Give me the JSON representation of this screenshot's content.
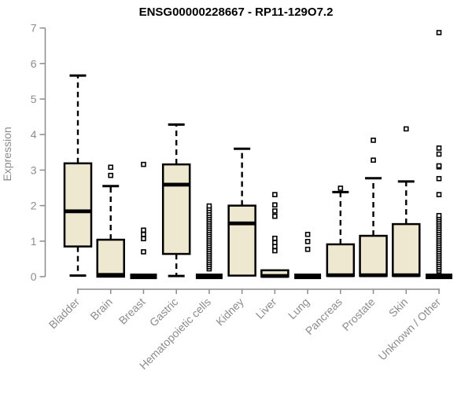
{
  "colors": {
    "background": "#FFFFFF",
    "box_fill": "#EDE8CF",
    "box_stroke": "#000000",
    "median": "#000000",
    "axis": "#8C8C8C",
    "tick_label": "#8C8C8C",
    "title": "#000000",
    "outlier_stroke": "#000000",
    "outlier_fill": "#FFFFFF"
  },
  "chart_data": {
    "type": "boxplot",
    "title": "ENSG00000228667 - RP11-129O7.2",
    "ylabel": "Expression",
    "xlabel": "",
    "ylim": [
      0,
      7
    ],
    "yticks": [
      0,
      1,
      2,
      3,
      4,
      5,
      6,
      7
    ],
    "grid": false,
    "legend": false,
    "categories": [
      "Bladder",
      "Brain",
      "Breast",
      "Gastric",
      "Hematopoietic cells",
      "Kidney",
      "Liver",
      "Lung",
      "Pancreas",
      "Prostate",
      "Skin",
      "Unknown / Other"
    ],
    "series": [
      {
        "category": "Bladder",
        "low": 0.03,
        "q1": 0.85,
        "median": 1.84,
        "q3": 3.19,
        "high": 5.66,
        "outliers": []
      },
      {
        "category": "Brain",
        "low": 0.0,
        "q1": 0.0,
        "median": 0.05,
        "q3": 1.04,
        "high": 2.55,
        "outliers": [
          2.85,
          3.08
        ]
      },
      {
        "category": "Breast",
        "low": 0.0,
        "q1": 0.0,
        "median": 0.02,
        "q3": 0.05,
        "high": 0.05,
        "outliers": [
          0.7,
          1.07,
          1.19,
          1.31,
          3.16
        ]
      },
      {
        "category": "Gastric",
        "low": 0.02,
        "q1": 0.64,
        "median": 2.59,
        "q3": 3.16,
        "high": 4.28,
        "outliers": []
      },
      {
        "category": "Hematopoietic cells",
        "low": 0.0,
        "q1": 0.0,
        "median": 0.02,
        "q3": 0.05,
        "high": 0.05,
        "outliers": [
          0.22,
          0.28,
          0.34,
          0.4,
          0.46,
          0.52,
          0.58,
          0.64,
          0.7,
          0.76,
          0.82,
          0.88,
          0.94,
          1.0,
          1.06,
          1.12,
          1.18,
          1.24,
          1.3,
          1.36,
          1.42,
          1.48,
          1.54,
          1.6,
          1.66,
          1.72,
          1.78,
          1.85,
          1.92,
          1.99
        ]
      },
      {
        "category": "Kidney",
        "low": 0.03,
        "q1": 0.03,
        "median": 1.5,
        "q3": 2.0,
        "high": 3.6,
        "outliers": []
      },
      {
        "category": "Liver",
        "low": 0.0,
        "q1": 0.0,
        "median": 0.02,
        "q3": 0.18,
        "high": 0.18,
        "outliers": [
          0.73,
          0.85,
          0.96,
          1.08,
          1.7,
          1.85,
          2.02,
          2.31
        ]
      },
      {
        "category": "Lung",
        "low": 0.0,
        "q1": 0.0,
        "median": 0.02,
        "q3": 0.04,
        "high": 0.04,
        "outliers": [
          0.77,
          0.99,
          1.19
        ]
      },
      {
        "category": "Pancreas",
        "low": 0.02,
        "q1": 0.02,
        "median": 0.04,
        "q3": 0.91,
        "high": 2.38,
        "outliers": [
          2.49
        ]
      },
      {
        "category": "Prostate",
        "low": 0.02,
        "q1": 0.02,
        "median": 0.04,
        "q3": 1.15,
        "high": 2.77,
        "outliers": [
          3.28,
          3.84
        ]
      },
      {
        "category": "Skin",
        "low": 0.02,
        "q1": 0.02,
        "median": 0.04,
        "q3": 1.48,
        "high": 2.68,
        "outliers": [
          4.16
        ]
      },
      {
        "category": "Unknown / Other",
        "low": 0.0,
        "q1": 0.0,
        "median": 0.02,
        "q3": 0.06,
        "high": 0.06,
        "outliers": [
          0.16,
          0.22,
          0.28,
          0.34,
          0.4,
          0.46,
          0.52,
          0.58,
          0.64,
          0.7,
          0.76,
          0.82,
          0.88,
          0.94,
          1.0,
          1.06,
          1.12,
          1.18,
          1.24,
          1.3,
          1.36,
          1.42,
          1.48,
          1.54,
          1.6,
          1.66,
          1.72,
          2.31,
          2.76,
          3.09,
          3.12,
          3.45,
          3.62,
          6.87
        ]
      }
    ]
  }
}
